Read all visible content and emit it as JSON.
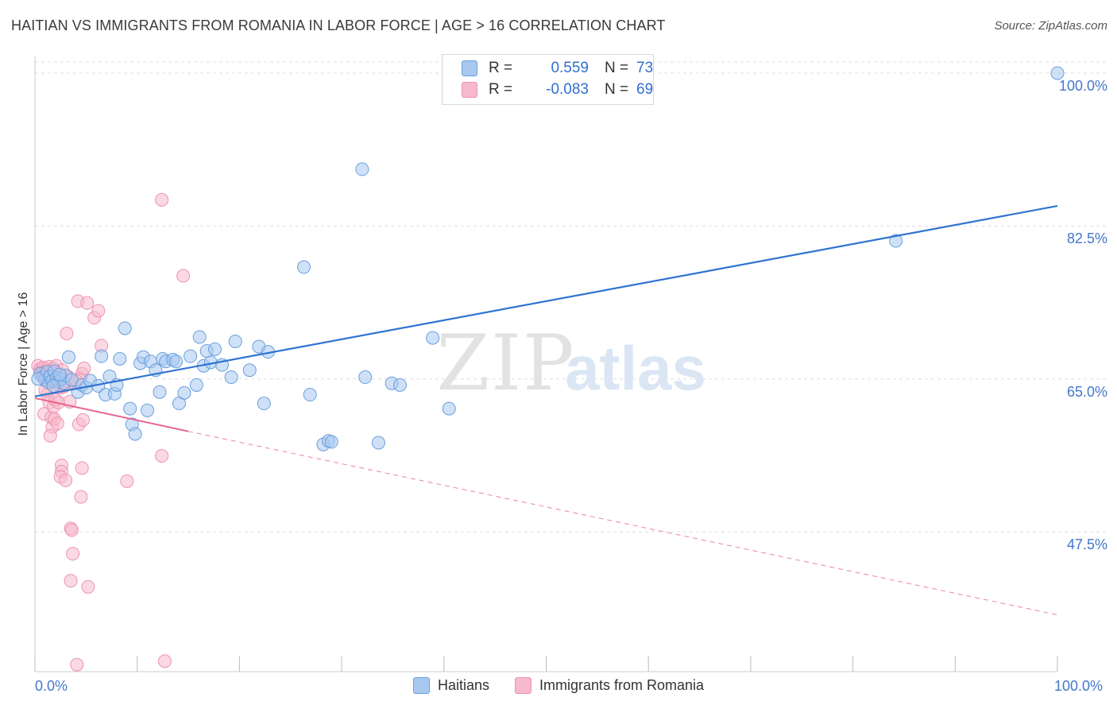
{
  "header": {
    "title": "HAITIAN VS IMMIGRANTS FROM ROMANIA IN LABOR FORCE | AGE > 16 CORRELATION CHART",
    "source": "Source: ZipAtlas.com"
  },
  "watermark": {
    "zip": "ZIP",
    "atlas": "atlas"
  },
  "colors": {
    "blue_fill": "#a8c8f0",
    "blue_stroke": "#6a9fdc",
    "blue_line": "#2f74d0",
    "pink_fill": "#f7b9cc",
    "pink_stroke": "#ee93b1",
    "pink_line": "#e5658f",
    "axis_text": "#4477cc",
    "grid": "#dddddd"
  },
  "stats_legend": [
    {
      "r_label": "R =",
      "r_value": "0.559",
      "n_label": "N =",
      "n_value": "73"
    },
    {
      "r_label": "R =",
      "r_value": "-0.083",
      "n_label": "N =",
      "n_value": "69"
    }
  ],
  "chart_data": {
    "type": "scatter",
    "title": "HAITIAN VS IMMIGRANTS FROM ROMANIA IN LABOR FORCE | AGE > 16 CORRELATION CHART",
    "xlabel": "",
    "ylabel": "In Labor Force | Age > 16",
    "xlim": [
      0,
      100
    ],
    "ylim": [
      31.5,
      102
    ],
    "x_tick_labels": [
      "0.0%",
      "100.0%"
    ],
    "y_ticks": [
      100.0,
      82.5,
      65.0,
      47.5
    ],
    "y_tick_labels": [
      "100.0%",
      "82.5%",
      "65.0%",
      "47.5%"
    ],
    "grid": true,
    "series": [
      {
        "name": "Haitians",
        "r": 0.559,
        "n": 73,
        "trend": {
          "x": [
            0,
            100
          ],
          "y": [
            63.0,
            84.8
          ],
          "style": "solid"
        },
        "points": [
          [
            0.5,
            65.6
          ],
          [
            0.8,
            65.2
          ],
          [
            1.0,
            64.9
          ],
          [
            1.2,
            65.8
          ],
          [
            1.3,
            64.6
          ],
          [
            1.5,
            65.3
          ],
          [
            1.7,
            64.8
          ],
          [
            1.9,
            65.9
          ],
          [
            2.1,
            65.1
          ],
          [
            2.3,
            64.7
          ],
          [
            2.6,
            65.0
          ],
          [
            2.8,
            64.5
          ],
          [
            3.0,
            65.4
          ],
          [
            3.3,
            67.5
          ],
          [
            3.6,
            64.9
          ],
          [
            4.2,
            63.5
          ],
          [
            4.6,
            64.3
          ],
          [
            5.0,
            64.0
          ],
          [
            5.4,
            64.8
          ],
          [
            6.2,
            64.2
          ],
          [
            6.5,
            67.6
          ],
          [
            6.9,
            63.2
          ],
          [
            7.3,
            65.3
          ],
          [
            7.8,
            63.3
          ],
          [
            8.0,
            64.3
          ],
          [
            8.3,
            67.3
          ],
          [
            8.8,
            70.8
          ],
          [
            9.3,
            61.6
          ],
          [
            9.5,
            59.8
          ],
          [
            9.8,
            58.7
          ],
          [
            10.3,
            66.8
          ],
          [
            10.6,
            67.5
          ],
          [
            11.0,
            61.4
          ],
          [
            11.3,
            67.0
          ],
          [
            11.8,
            66.0
          ],
          [
            12.2,
            63.5
          ],
          [
            12.5,
            67.3
          ],
          [
            12.8,
            67.0
          ],
          [
            13.5,
            67.2
          ],
          [
            13.8,
            67.0
          ],
          [
            14.1,
            62.2
          ],
          [
            14.6,
            63.4
          ],
          [
            15.2,
            67.6
          ],
          [
            15.8,
            64.3
          ],
          [
            16.1,
            69.8
          ],
          [
            16.5,
            66.5
          ],
          [
            16.8,
            68.2
          ],
          [
            17.2,
            66.9
          ],
          [
            17.6,
            68.4
          ],
          [
            18.3,
            66.6
          ],
          [
            19.2,
            65.2
          ],
          [
            19.6,
            69.3
          ],
          [
            21.0,
            66.0
          ],
          [
            21.9,
            68.7
          ],
          [
            22.4,
            62.2
          ],
          [
            22.8,
            68.1
          ],
          [
            26.3,
            77.8
          ],
          [
            26.9,
            63.2
          ],
          [
            28.2,
            57.5
          ],
          [
            28.7,
            57.9
          ],
          [
            29.0,
            57.8
          ],
          [
            32.3,
            65.2
          ],
          [
            33.6,
            57.7
          ],
          [
            34.9,
            64.5
          ],
          [
            35.7,
            64.3
          ],
          [
            38.9,
            69.7
          ],
          [
            40.5,
            61.6
          ],
          [
            32.0,
            89.0
          ],
          [
            84.2,
            80.8
          ],
          [
            100.0,
            100.0
          ],
          [
            1.8,
            64.2
          ],
          [
            2.4,
            65.5
          ],
          [
            0.3,
            65.0
          ]
        ]
      },
      {
        "name": "Immigrants from Romania",
        "r": -0.083,
        "n": 69,
        "trend": {
          "x": [
            0,
            15
          ],
          "y": [
            62.8,
            59.0
          ],
          "style": "solid",
          "extension": {
            "x": [
              15,
              100
            ],
            "y": [
              59.0,
              38.0
            ],
            "style": "dashed"
          }
        },
        "points": [
          [
            0.3,
            66.5
          ],
          [
            0.5,
            66.1
          ],
          [
            0.6,
            65.8
          ],
          [
            0.7,
            65.5
          ],
          [
            0.8,
            66.3
          ],
          [
            0.9,
            65.2
          ],
          [
            1.0,
            65.9
          ],
          [
            1.1,
            64.8
          ],
          [
            1.2,
            66.0
          ],
          [
            1.3,
            65.3
          ],
          [
            1.4,
            66.4
          ],
          [
            1.5,
            65.0
          ],
          [
            1.6,
            64.6
          ],
          [
            1.7,
            65.7
          ],
          [
            1.8,
            66.2
          ],
          [
            1.9,
            64.9
          ],
          [
            2.0,
            65.6
          ],
          [
            2.1,
            66.5
          ],
          [
            2.2,
            64.5
          ],
          [
            2.3,
            65.1
          ],
          [
            2.5,
            64.0
          ],
          [
            2.7,
            66.0
          ],
          [
            2.9,
            64.3
          ],
          [
            3.1,
            64.4
          ],
          [
            3.3,
            65.2
          ],
          [
            0.9,
            61.0
          ],
          [
            1.2,
            63.2
          ],
          [
            1.4,
            62.3
          ],
          [
            1.6,
            60.6
          ],
          [
            1.7,
            59.5
          ],
          [
            1.8,
            61.8
          ],
          [
            1.9,
            60.4
          ],
          [
            2.0,
            62.6
          ],
          [
            2.2,
            59.9
          ],
          [
            2.3,
            62.3
          ],
          [
            1.5,
            58.5
          ],
          [
            3.4,
            62.4
          ],
          [
            4.3,
            59.8
          ],
          [
            3.1,
            70.2
          ],
          [
            4.2,
            73.9
          ],
          [
            5.1,
            73.7
          ],
          [
            5.8,
            72.0
          ],
          [
            6.2,
            72.8
          ],
          [
            6.5,
            68.8
          ],
          [
            4.6,
            65.6
          ],
          [
            4.4,
            65.0
          ],
          [
            4.0,
            64.8
          ],
          [
            4.8,
            66.2
          ],
          [
            4.7,
            60.3
          ],
          [
            2.6,
            55.1
          ],
          [
            2.6,
            54.4
          ],
          [
            2.5,
            53.8
          ],
          [
            3.0,
            53.4
          ],
          [
            4.6,
            54.8
          ],
          [
            4.5,
            51.5
          ],
          [
            3.5,
            47.9
          ],
          [
            3.6,
            47.7
          ],
          [
            3.7,
            45.0
          ],
          [
            3.5,
            41.9
          ],
          [
            5.2,
            41.2
          ],
          [
            4.1,
            32.3
          ],
          [
            12.7,
            32.7
          ],
          [
            9.0,
            53.3
          ],
          [
            12.4,
            56.2
          ],
          [
            12.4,
            85.5
          ],
          [
            14.5,
            76.8
          ],
          [
            3.0,
            65.4
          ],
          [
            2.8,
            64.1
          ],
          [
            1.0,
            63.7
          ]
        ]
      }
    ],
    "legend_position": "bottom-center"
  }
}
